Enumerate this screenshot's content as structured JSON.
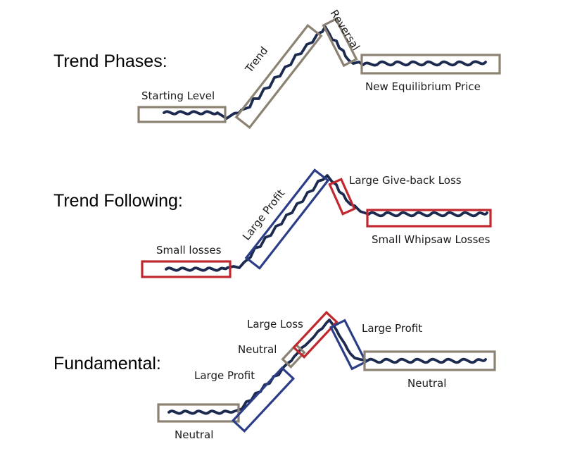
{
  "colors": {
    "wave": "#1b2a4e",
    "neutral_box": "#8c8273",
    "profit_box": "#2b3d87",
    "loss_box": "#c0282d",
    "text": "#1a1a1a"
  },
  "rows": [
    {
      "title": "Trend Phases:",
      "segments": [
        {
          "label": "Starting Level",
          "kind": "neutral"
        },
        {
          "label": "Trend",
          "kind": "neutral"
        },
        {
          "label": "Reversal",
          "kind": "neutral"
        },
        {
          "label": "New Equilibrium Price",
          "kind": "neutral"
        }
      ]
    },
    {
      "title": "Trend Following:",
      "segments": [
        {
          "label": "Small losses",
          "kind": "loss"
        },
        {
          "label": "Large Profit",
          "kind": "profit"
        },
        {
          "label": "Large Give-back Loss",
          "kind": "loss"
        },
        {
          "label": "Small Whipsaw Losses",
          "kind": "loss"
        }
      ]
    },
    {
      "title": "Fundamental:",
      "segments": [
        {
          "label": "Neutral",
          "kind": "neutral"
        },
        {
          "label": "Large Profit",
          "kind": "profit"
        },
        {
          "label": "Neutral",
          "kind": "neutral"
        },
        {
          "label": "Large Loss",
          "kind": "loss"
        },
        {
          "label": "Large Profit",
          "kind": "profit"
        },
        {
          "label": "Neutral",
          "kind": "neutral"
        }
      ]
    }
  ]
}
